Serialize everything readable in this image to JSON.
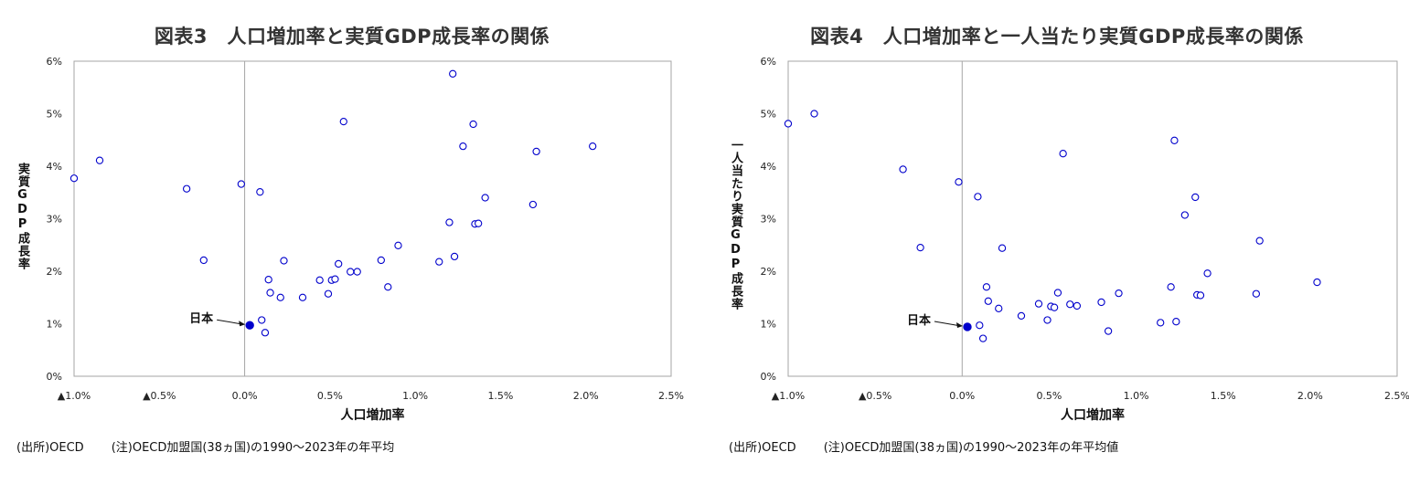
{
  "charts": [
    {
      "id": "chart3",
      "title": "図表3　人口増加率と実質GDP成長率の関係",
      "ylabel": "実質GDP成長率",
      "xlabel": "人口増加率",
      "source": "(出所)OECD",
      "note": "(注)OECD加盟国(38ヵ国)の1990～2023年の年平均"
    },
    {
      "id": "chart4",
      "title": "図表4　人口増加率と一人当たり実質GDP成長率の関係",
      "ylabel": "一人当たり実質GDP成長率",
      "xlabel": "人口増加率",
      "source": "(出所)OECD",
      "note": "(注)OECD加盟国(38ヵ国)の1990～2023年の年平均値"
    }
  ],
  "highlight_label": "日本",
  "chart_data": [
    {
      "type": "scatter",
      "title": "図表3　人口増加率と実質GDP成長率の関係",
      "xlabel": "人口増加率",
      "ylabel": "実質GDP成長率",
      "xlim": [
        -1.0,
        2.5
      ],
      "ylim": [
        0,
        6
      ],
      "x_ticks": [
        "▲1.0%",
        "▲0.5%",
        "0.0%",
        "0.5%",
        "1.0%",
        "1.5%",
        "2.0%",
        "2.5%"
      ],
      "y_ticks": [
        "0%",
        "1%",
        "2%",
        "3%",
        "4%",
        "5%",
        "6%"
      ],
      "grid": false,
      "marker_color": "#0000cc",
      "highlight": {
        "label": "日本",
        "x": 0.03,
        "y": 0.97,
        "color": "#0000cc"
      },
      "points": [
        {
          "x": -1.0,
          "y": 3.77
        },
        {
          "x": -0.85,
          "y": 4.11
        },
        {
          "x": -0.34,
          "y": 3.57
        },
        {
          "x": -0.24,
          "y": 2.21
        },
        {
          "x": -0.02,
          "y": 3.66
        },
        {
          "x": 0.09,
          "y": 3.51
        },
        {
          "x": 0.1,
          "y": 1.07
        },
        {
          "x": 0.12,
          "y": 0.83
        },
        {
          "x": 0.14,
          "y": 1.84
        },
        {
          "x": 0.15,
          "y": 1.59
        },
        {
          "x": 0.21,
          "y": 1.5
        },
        {
          "x": 0.23,
          "y": 2.2
        },
        {
          "x": 0.34,
          "y": 1.5
        },
        {
          "x": 0.44,
          "y": 1.83
        },
        {
          "x": 0.49,
          "y": 1.57
        },
        {
          "x": 0.51,
          "y": 1.83
        },
        {
          "x": 0.53,
          "y": 1.85
        },
        {
          "x": 0.55,
          "y": 2.14
        },
        {
          "x": 0.58,
          "y": 4.85
        },
        {
          "x": 0.62,
          "y": 1.99
        },
        {
          "x": 0.66,
          "y": 1.99
        },
        {
          "x": 0.8,
          "y": 2.21
        },
        {
          "x": 0.84,
          "y": 1.7
        },
        {
          "x": 0.9,
          "y": 2.49
        },
        {
          "x": 1.14,
          "y": 2.18
        },
        {
          "x": 1.2,
          "y": 2.93
        },
        {
          "x": 1.22,
          "y": 5.76
        },
        {
          "x": 1.23,
          "y": 2.28
        },
        {
          "x": 1.28,
          "y": 4.38
        },
        {
          "x": 1.34,
          "y": 4.8
        },
        {
          "x": 1.35,
          "y": 2.9
        },
        {
          "x": 1.37,
          "y": 2.91
        },
        {
          "x": 1.41,
          "y": 3.4
        },
        {
          "x": 1.69,
          "y": 3.27
        },
        {
          "x": 1.71,
          "y": 4.28
        },
        {
          "x": 2.04,
          "y": 4.38
        }
      ]
    },
    {
      "type": "scatter",
      "title": "図表4　人口増加率と一人当たり実質GDP成長率の関係",
      "xlabel": "人口増加率",
      "ylabel": "一人当たり実質GDP成長率",
      "xlim": [
        -1.0,
        2.5
      ],
      "ylim": [
        0,
        6
      ],
      "x_ticks": [
        "▲1.0%",
        "▲0.5%",
        "0.0%",
        "0.5%",
        "1.0%",
        "1.5%",
        "2.0%",
        "2.5%"
      ],
      "y_ticks": [
        "0%",
        "1%",
        "2%",
        "3%",
        "4%",
        "5%",
        "6%"
      ],
      "grid": false,
      "marker_color": "#0000cc",
      "highlight": {
        "label": "日本",
        "x": 0.03,
        "y": 0.94,
        "color": "#0000cc"
      },
      "points": [
        {
          "x": -1.0,
          "y": 4.81
        },
        {
          "x": -0.85,
          "y": 5.0
        },
        {
          "x": -0.34,
          "y": 3.94
        },
        {
          "x": -0.24,
          "y": 2.45
        },
        {
          "x": -0.02,
          "y": 3.7
        },
        {
          "x": 0.09,
          "y": 3.42
        },
        {
          "x": 0.1,
          "y": 0.97
        },
        {
          "x": 0.12,
          "y": 0.72
        },
        {
          "x": 0.14,
          "y": 1.7
        },
        {
          "x": 0.15,
          "y": 1.43
        },
        {
          "x": 0.21,
          "y": 1.29
        },
        {
          "x": 0.23,
          "y": 2.44
        },
        {
          "x": 0.34,
          "y": 1.15
        },
        {
          "x": 0.44,
          "y": 1.38
        },
        {
          "x": 0.49,
          "y": 1.07
        },
        {
          "x": 0.51,
          "y": 1.33
        },
        {
          "x": 0.53,
          "y": 1.31
        },
        {
          "x": 0.55,
          "y": 1.59
        },
        {
          "x": 0.58,
          "y": 4.24
        },
        {
          "x": 0.62,
          "y": 1.37
        },
        {
          "x": 0.66,
          "y": 1.34
        },
        {
          "x": 0.8,
          "y": 1.41
        },
        {
          "x": 0.84,
          "y": 0.86
        },
        {
          "x": 0.9,
          "y": 1.58
        },
        {
          "x": 1.14,
          "y": 1.02
        },
        {
          "x": 1.2,
          "y": 1.7
        },
        {
          "x": 1.22,
          "y": 4.49
        },
        {
          "x": 1.23,
          "y": 1.04
        },
        {
          "x": 1.28,
          "y": 3.07
        },
        {
          "x": 1.34,
          "y": 3.41
        },
        {
          "x": 1.35,
          "y": 1.55
        },
        {
          "x": 1.37,
          "y": 1.54
        },
        {
          "x": 1.41,
          "y": 1.96
        },
        {
          "x": 1.69,
          "y": 1.57
        },
        {
          "x": 1.71,
          "y": 2.58
        },
        {
          "x": 2.04,
          "y": 1.79
        }
      ]
    }
  ]
}
